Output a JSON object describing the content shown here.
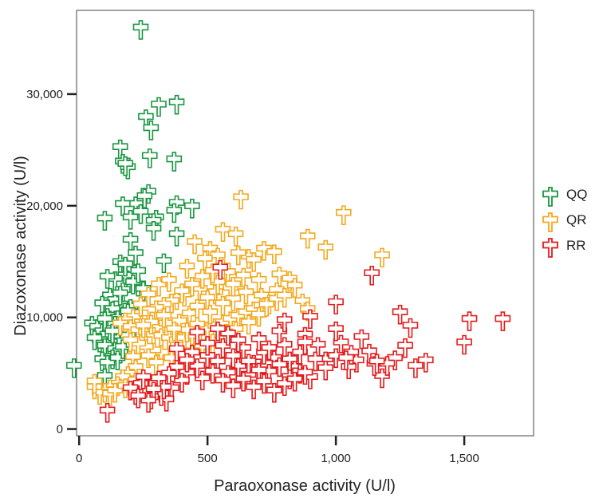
{
  "chart_data": {
    "type": "scatter",
    "title": "",
    "xlabel": "Paraoxonase activity (U/l)",
    "ylabel": "Diazoxonase activity (U/l)",
    "xlim": [
      -10,
      1770
    ],
    "ylim": [
      -600,
      37500
    ],
    "xticks": [
      {
        "v": 0,
        "label": "0"
      },
      {
        "v": 500,
        "label": "500"
      },
      {
        "v": 1000,
        "label": "1,000"
      },
      {
        "v": 1500,
        "label": "1,500"
      }
    ],
    "yticks": [
      {
        "v": 0,
        "label": "0"
      },
      {
        "v": 10000,
        "label": "10,000"
      },
      {
        "v": 20000,
        "label": "20,000"
      },
      {
        "v": 30000,
        "label": "30,000"
      }
    ],
    "grid": false,
    "legend_position": "right",
    "marker": "cross",
    "series": [
      {
        "name": "QQ",
        "color": "#1a9641",
        "points": [
          [
            240,
            36000
          ],
          [
            380,
            29300
          ],
          [
            310,
            29100
          ],
          [
            260,
            28000
          ],
          [
            280,
            27000
          ],
          [
            275,
            24500
          ],
          [
            370,
            24200
          ],
          [
            160,
            25300
          ],
          [
            170,
            24000
          ],
          [
            190,
            23500
          ],
          [
            180,
            23800
          ],
          [
            270,
            21300
          ],
          [
            255,
            20900
          ],
          [
            220,
            20200
          ],
          [
            170,
            20200
          ],
          [
            380,
            20300
          ],
          [
            440,
            20000
          ],
          [
            370,
            19600
          ],
          [
            300,
            19000
          ],
          [
            290,
            18700
          ],
          [
            290,
            18000
          ],
          [
            200,
            19000
          ],
          [
            240,
            19500
          ],
          [
            100,
            18900
          ],
          [
            380,
            17500
          ],
          [
            200,
            17000
          ],
          [
            330,
            15100
          ],
          [
            220,
            15800
          ],
          [
            160,
            15000
          ],
          [
            200,
            14400
          ],
          [
            180,
            13800
          ],
          [
            230,
            13000
          ],
          [
            140,
            13500
          ],
          [
            110,
            13700
          ],
          [
            170,
            12500
          ],
          [
            120,
            12000
          ],
          [
            140,
            11600
          ],
          [
            160,
            11200
          ],
          [
            200,
            11000
          ],
          [
            130,
            10800
          ],
          [
            90,
            11300
          ],
          [
            110,
            10200
          ],
          [
            150,
            10000
          ],
          [
            170,
            9800
          ],
          [
            50,
            9500
          ],
          [
            70,
            9200
          ],
          [
            90,
            8800
          ],
          [
            110,
            8500
          ],
          [
            130,
            8400
          ],
          [
            80,
            8000
          ],
          [
            120,
            7800
          ],
          [
            100,
            7500
          ],
          [
            140,
            7200
          ],
          [
            160,
            7000
          ],
          [
            130,
            6500
          ],
          [
            90,
            6300
          ],
          [
            110,
            6000
          ],
          [
            -20,
            5700
          ],
          [
            100,
            4800
          ],
          [
            120,
            9000
          ],
          [
            140,
            9500
          ],
          [
            190,
            10600
          ],
          [
            210,
            13200
          ],
          [
            230,
            14200
          ],
          [
            250,
            12600
          ],
          [
            180,
            14800
          ],
          [
            160,
            12200
          ],
          [
            100,
            9900
          ],
          [
            130,
            8800
          ],
          [
            60,
            8200
          ],
          [
            150,
            6400
          ],
          [
            170,
            7400
          ],
          [
            210,
            9600
          ],
          [
            190,
            8400
          ]
        ]
      },
      {
        "name": "QR",
        "color": "#f4a81d",
        "points": [
          [
            630,
            20800
          ],
          [
            1030,
            19400
          ],
          [
            560,
            17900
          ],
          [
            890,
            17300
          ],
          [
            610,
            17500
          ],
          [
            450,
            16800
          ],
          [
            510,
            16200
          ],
          [
            960,
            16300
          ],
          [
            1180,
            15600
          ],
          [
            720,
            16200
          ],
          [
            760,
            15900
          ],
          [
            660,
            15500
          ],
          [
            680,
            15200
          ],
          [
            540,
            15600
          ],
          [
            490,
            15300
          ],
          [
            420,
            14600
          ],
          [
            580,
            14100
          ],
          [
            640,
            13800
          ],
          [
            700,
            13400
          ],
          [
            780,
            13900
          ],
          [
            820,
            13500
          ],
          [
            840,
            12900
          ],
          [
            770,
            12500
          ],
          [
            710,
            12000
          ],
          [
            650,
            12300
          ],
          [
            590,
            12700
          ],
          [
            530,
            12300
          ],
          [
            470,
            12600
          ],
          [
            410,
            12100
          ],
          [
            380,
            11800
          ],
          [
            360,
            11500
          ],
          [
            330,
            11200
          ],
          [
            300,
            10900
          ],
          [
            270,
            10700
          ],
          [
            240,
            10400
          ],
          [
            210,
            10100
          ],
          [
            180,
            9800
          ],
          [
            160,
            9500
          ],
          [
            200,
            9200
          ],
          [
            230,
            8900
          ],
          [
            260,
            8700
          ],
          [
            290,
            8500
          ],
          [
            320,
            8400
          ],
          [
            350,
            8200
          ],
          [
            380,
            8000
          ],
          [
            410,
            8200
          ],
          [
            440,
            8400
          ],
          [
            470,
            8700
          ],
          [
            500,
            9000
          ],
          [
            530,
            9300
          ],
          [
            560,
            9600
          ],
          [
            590,
            9900
          ],
          [
            620,
            10200
          ],
          [
            650,
            10500
          ],
          [
            680,
            10800
          ],
          [
            710,
            11100
          ],
          [
            740,
            11400
          ],
          [
            770,
            11700
          ],
          [
            800,
            12000
          ],
          [
            870,
            11500
          ],
          [
            890,
            10800
          ],
          [
            610,
            9000
          ],
          [
            570,
            8700
          ],
          [
            520,
            7900
          ],
          [
            480,
            7400
          ],
          [
            440,
            7000
          ],
          [
            400,
            6700
          ],
          [
            360,
            6400
          ],
          [
            320,
            6900
          ],
          [
            290,
            7100
          ],
          [
            260,
            7400
          ],
          [
            230,
            7700
          ],
          [
            200,
            8000
          ],
          [
            210,
            6500
          ],
          [
            220,
            5600
          ],
          [
            190,
            5000
          ],
          [
            170,
            4700
          ],
          [
            150,
            4100
          ],
          [
            120,
            3800
          ],
          [
            100,
            3500
          ],
          [
            80,
            3300
          ],
          [
            60,
            3800
          ],
          [
            60,
            4300
          ],
          [
            120,
            3200
          ],
          [
            140,
            3500
          ],
          [
            180,
            3900
          ],
          [
            220,
            4400
          ],
          [
            250,
            3900
          ],
          [
            270,
            6600
          ],
          [
            300,
            6000
          ],
          [
            340,
            9500
          ],
          [
            390,
            9700
          ],
          [
            430,
            10400
          ],
          [
            460,
            11000
          ],
          [
            500,
            11800
          ],
          [
            540,
            13200
          ],
          [
            620,
            15800
          ],
          [
            600,
            11700
          ],
          [
            660,
            9600
          ],
          [
            700,
            10300
          ],
          [
            730,
            11200
          ],
          [
            560,
            11300
          ],
          [
            510,
            10500
          ],
          [
            460,
            9400
          ],
          [
            420,
            8900
          ],
          [
            370,
            9000
          ],
          [
            330,
            10200
          ],
          [
            280,
            9600
          ],
          [
            250,
            9300
          ],
          [
            240,
            11200
          ],
          [
            270,
            12100
          ],
          [
            310,
            13000
          ],
          [
            350,
            13400
          ],
          [
            400,
            12400
          ],
          [
            440,
            13000
          ],
          [
            480,
            13700
          ],
          [
            520,
            14200
          ],
          [
            560,
            14600
          ],
          [
            600,
            13000
          ]
        ]
      },
      {
        "name": "RR",
        "color": "#e31a1c",
        "points": [
          [
            1650,
            9900
          ],
          [
            1520,
            9900
          ],
          [
            1250,
            10500
          ],
          [
            1290,
            9300
          ],
          [
            1500,
            7800
          ],
          [
            1350,
            6200
          ],
          [
            1310,
            5700
          ],
          [
            1270,
            7500
          ],
          [
            1230,
            6400
          ],
          [
            1180,
            4800
          ],
          [
            1150,
            5900
          ],
          [
            1130,
            7000
          ],
          [
            1100,
            8300
          ],
          [
            1080,
            6200
          ],
          [
            1050,
            5600
          ],
          [
            1020,
            7800
          ],
          [
            1000,
            9000
          ],
          [
            1000,
            11400
          ],
          [
            960,
            6300
          ],
          [
            930,
            7600
          ],
          [
            900,
            10100
          ],
          [
            880,
            8500
          ],
          [
            860,
            6900
          ],
          [
            840,
            5600
          ],
          [
            820,
            6300
          ],
          [
            800,
            7600
          ],
          [
            780,
            8800
          ],
          [
            760,
            6400
          ],
          [
            740,
            5200
          ],
          [
            720,
            6900
          ],
          [
            700,
            8100
          ],
          [
            680,
            6000
          ],
          [
            660,
            4900
          ],
          [
            640,
            7300
          ],
          [
            620,
            5700
          ],
          [
            600,
            6600
          ],
          [
            580,
            5100
          ],
          [
            560,
            7500
          ],
          [
            540,
            6100
          ],
          [
            520,
            5200
          ],
          [
            500,
            6600
          ],
          [
            480,
            4600
          ],
          [
            460,
            5700
          ],
          [
            440,
            6900
          ],
          [
            420,
            5100
          ],
          [
            400,
            4400
          ],
          [
            380,
            5600
          ],
          [
            360,
            3700
          ],
          [
            340,
            2700
          ],
          [
            320,
            3200
          ],
          [
            300,
            4100
          ],
          [
            280,
            2900
          ],
          [
            260,
            3500
          ],
          [
            240,
            4100
          ],
          [
            220,
            3300
          ],
          [
            200,
            3700
          ],
          [
            110,
            1700
          ],
          [
            1140,
            14000
          ],
          [
            550,
            14500
          ],
          [
            800,
            9800
          ],
          [
            880,
            7800
          ],
          [
            920,
            6300
          ],
          [
            960,
            5500
          ],
          [
            900,
            4700
          ],
          [
            860,
            5200
          ],
          [
            820,
            4700
          ],
          [
            780,
            5800
          ],
          [
            740,
            7300
          ],
          [
            700,
            5300
          ],
          [
            660,
            6100
          ],
          [
            620,
            8000
          ],
          [
            580,
            8600
          ],
          [
            540,
            9000
          ],
          [
            500,
            7700
          ],
          [
            460,
            8700
          ],
          [
            420,
            6200
          ],
          [
            380,
            7200
          ],
          [
            350,
            5000
          ],
          [
            330,
            3800
          ],
          [
            310,
            4600
          ],
          [
            290,
            3600
          ],
          [
            270,
            2600
          ],
          [
            250,
            4700
          ],
          [
            230,
            3000
          ],
          [
            560,
            4400
          ],
          [
            600,
            3900
          ],
          [
            640,
            4500
          ],
          [
            680,
            3800
          ],
          [
            720,
            4300
          ],
          [
            760,
            3500
          ],
          [
            800,
            4100
          ],
          [
            840,
            4500
          ],
          [
            880,
            5100
          ],
          [
            1000,
            6600
          ],
          [
            1060,
            6900
          ],
          [
            1200,
            5900
          ],
          [
            1160,
            6100
          ],
          [
            1040,
            6400
          ]
        ]
      }
    ]
  }
}
